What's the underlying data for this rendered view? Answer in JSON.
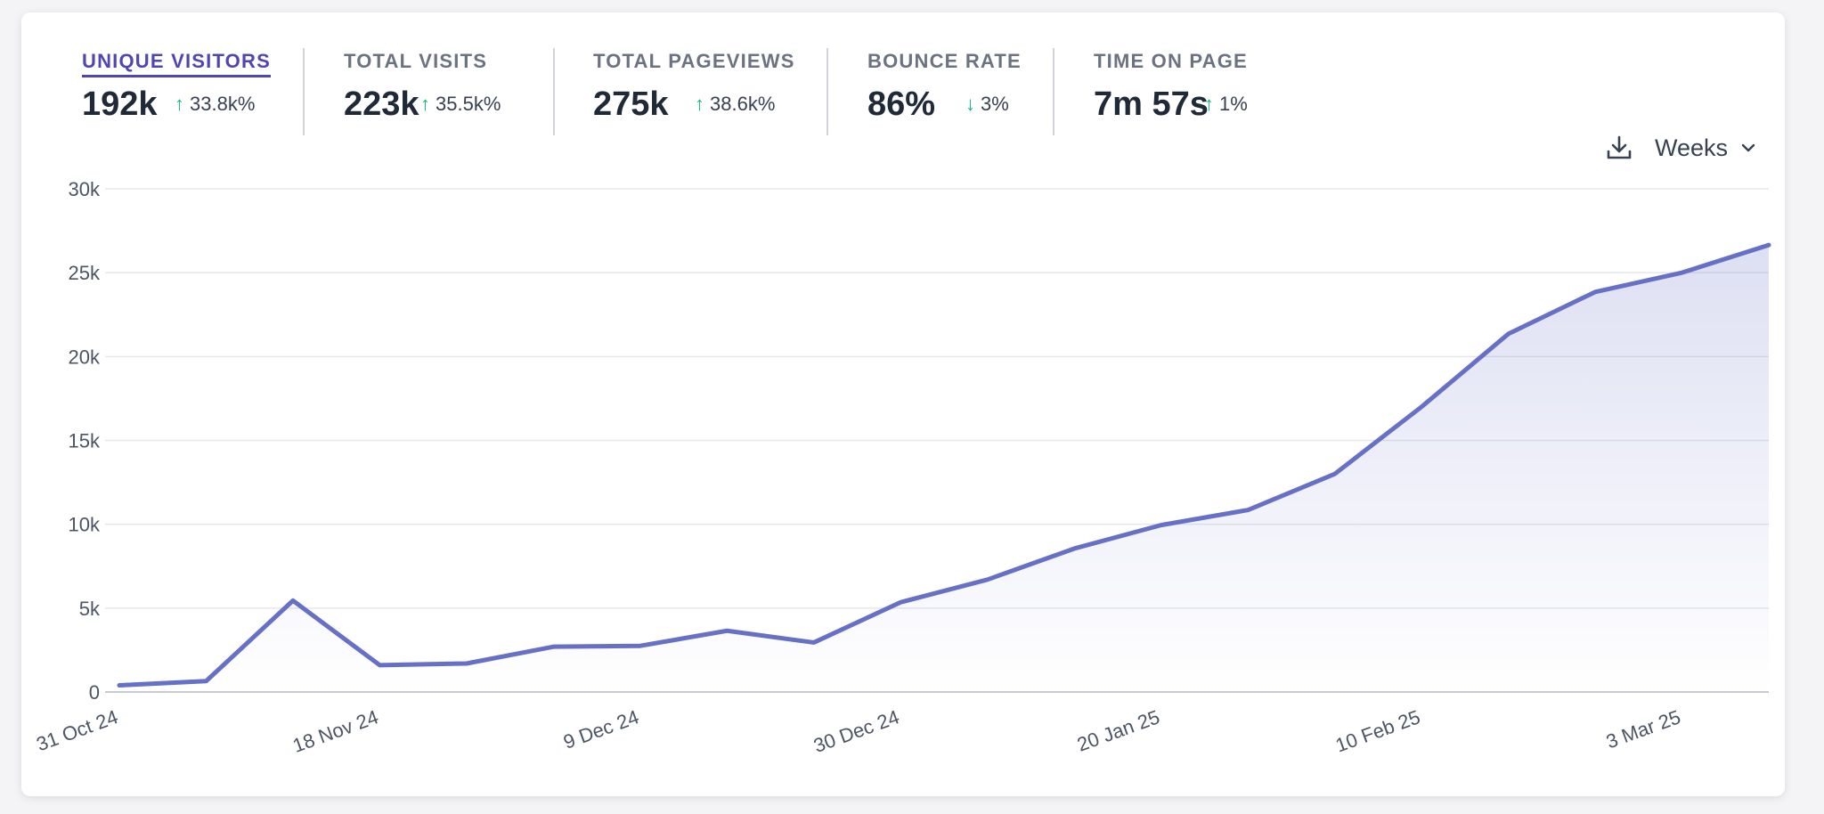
{
  "metrics": [
    {
      "label": "UNIQUE VISITORS",
      "value": "192k",
      "change": "33.8k%",
      "direction": "up",
      "active": true
    },
    {
      "label": "TOTAL VISITS",
      "value": "223k",
      "change": "35.5k%",
      "direction": "up",
      "active": false
    },
    {
      "label": "TOTAL PAGEVIEWS",
      "value": "275k",
      "change": "38.6k%",
      "direction": "up",
      "active": false
    },
    {
      "label": "BOUNCE RATE",
      "value": "86%",
      "change": "3%",
      "direction": "down",
      "active": false
    },
    {
      "label": "TIME ON PAGE",
      "value": "7m 57s",
      "change": "1%",
      "direction": "up",
      "active": false
    }
  ],
  "toolbar": {
    "download_icon": "download-icon",
    "interval_label": "Weeks",
    "interval_icon": "chevron-down-icon"
  },
  "colors": {
    "line": "#6670c6",
    "fill": "#6670c6",
    "accent": "#4f46b3",
    "up": "#10b981",
    "down": "#10b981"
  },
  "chart_data": {
    "type": "area",
    "x": [
      "31 Oct 24",
      "",
      "",
      "18 Nov 24",
      "",
      "",
      "9 Dec 24",
      "",
      "",
      "30 Dec 24",
      "",
      "",
      "20 Jan 25",
      "",
      "",
      "10 Feb 25",
      "",
      "",
      "3 Mar 25",
      ""
    ],
    "values": [
      400,
      650,
      5450,
      1600,
      1700,
      2700,
      2750,
      3650,
      2950,
      5350,
      6700,
      8550,
      9950,
      10850,
      13000,
      17000,
      21350,
      23850,
      25000,
      26650
    ],
    "yticks": [
      "0",
      "5k",
      "10k",
      "15k",
      "20k",
      "25k",
      "30k"
    ],
    "xtick_labels": [
      "31 Oct 24",
      "18 Nov 24",
      "9 Dec 24",
      "30 Dec 24",
      "20 Jan 25",
      "10 Feb 25",
      "3 Mar 25"
    ],
    "ylim": [
      0,
      30000
    ],
    "grid": true,
    "legend": "none"
  }
}
